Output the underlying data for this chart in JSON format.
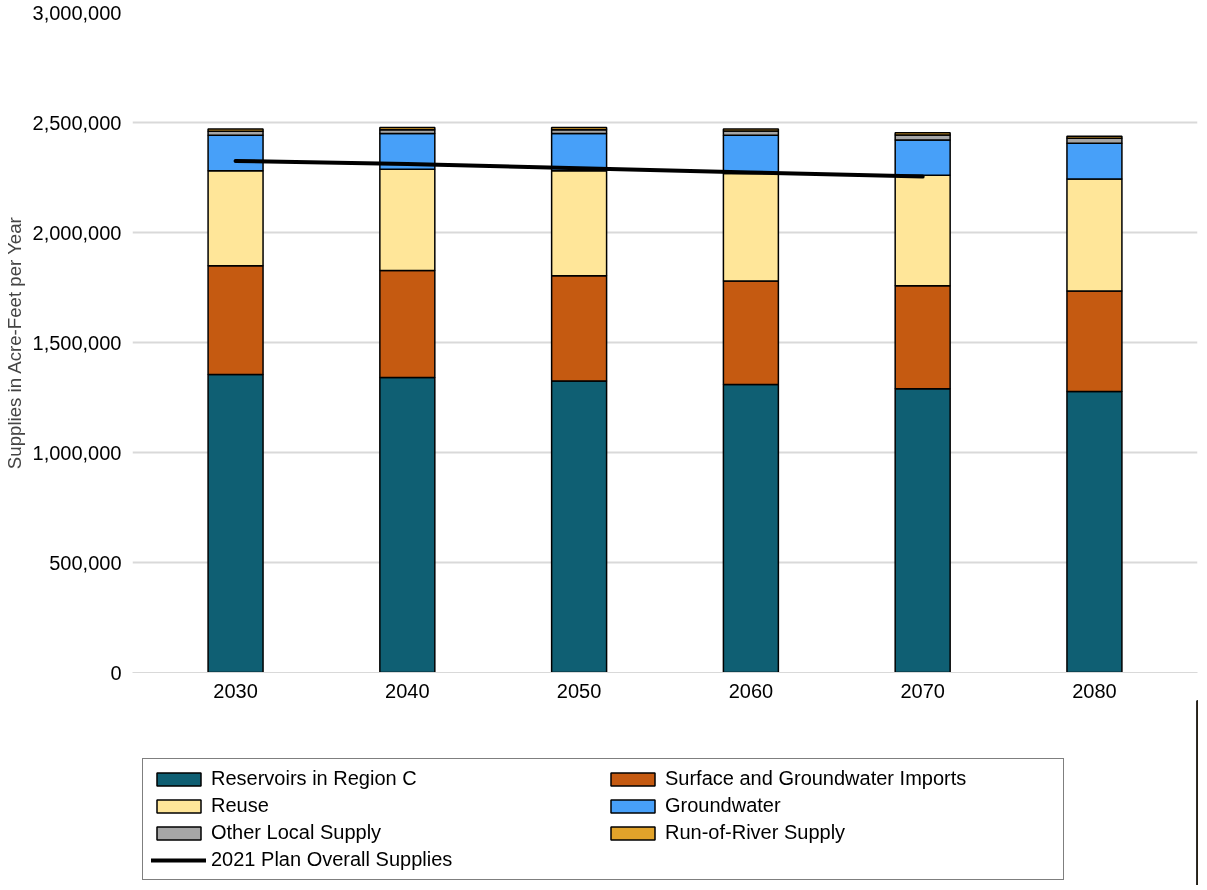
{
  "chart_data": {
    "type": "bar",
    "stacked": true,
    "ylabel": "Supplies in Acre-Feet per Year",
    "categories": [
      "2030",
      "2040",
      "2050",
      "2060",
      "2070",
      "2080"
    ],
    "ylim": [
      0,
      3000000
    ],
    "yticks": [
      {
        "value": 0,
        "label": "0"
      },
      {
        "value": 500000,
        "label": "500,000"
      },
      {
        "value": 1000000,
        "label": "1,000,000"
      },
      {
        "value": 1500000,
        "label": "1,500,000"
      },
      {
        "value": 2000000,
        "label": "2,000,000"
      },
      {
        "value": 2500000,
        "label": "2,500,000"
      },
      {
        "value": 3000000,
        "label": "3,000,000"
      }
    ],
    "grid": "y",
    "legend": "bottom",
    "series": [
      {
        "name": "Reservoirs in Region C",
        "color": "#0f5f73",
        "values": [
          1355000,
          1341000,
          1325000,
          1309000,
          1290000,
          1277000
        ]
      },
      {
        "name": "Surface and Groundwater Imports",
        "color": "#c55a11",
        "values": [
          494000,
          486000,
          478000,
          471000,
          468000,
          457000
        ]
      },
      {
        "name": "Reuse",
        "color": "#ffe699",
        "values": [
          432000,
          460000,
          478000,
          488000,
          502000,
          509000
        ]
      },
      {
        "name": "Groundwater",
        "color": "#47a0f9",
        "values": [
          161000,
          163000,
          169000,
          174000,
          161000,
          163000
        ]
      },
      {
        "name": "Other Local Supply",
        "color": "#a6a6a6",
        "values": [
          18000,
          17000,
          17000,
          19000,
          22000,
          22000
        ]
      },
      {
        "name": "Run-of-River Supply",
        "color": "#e2a32a",
        "values": [
          10000,
          10000,
          10000,
          10000,
          10000,
          10000
        ]
      },
      {
        "name": "2021 Plan Overall Supplies",
        "type": "line",
        "color": "#000000",
        "values": [
          2325000,
          2311000,
          2292000,
          2273000,
          2254000,
          null
        ]
      }
    ]
  }
}
